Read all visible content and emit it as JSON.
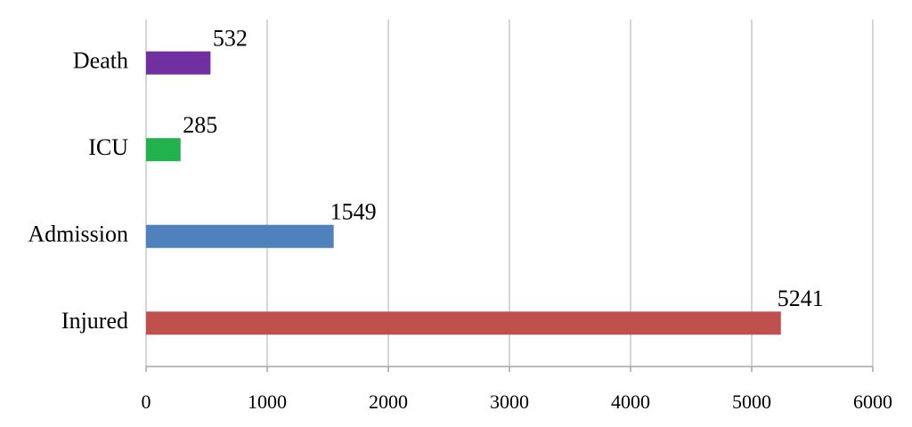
{
  "chart_data": {
    "type": "hbar",
    "categories": [
      "Death",
      "ICU",
      "Admission",
      "Injured"
    ],
    "values": [
      532,
      285,
      1549,
      5241
    ],
    "colors": [
      "#7030a0",
      "#22b14c",
      "#4f81bd",
      "#c0504d"
    ],
    "xlim": [
      0,
      6000
    ],
    "xticks": [
      0,
      1000,
      2000,
      3000,
      4000,
      5000,
      6000
    ],
    "grid": true
  }
}
